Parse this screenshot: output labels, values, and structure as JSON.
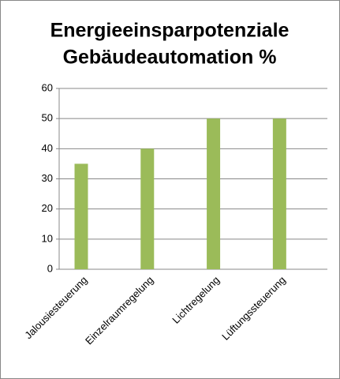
{
  "chart_data": {
    "type": "bar",
    "title": [
      "Energieeinsparpotenziale",
      "Gebäudeautomation %"
    ],
    "categories": [
      "Jalousiesteuerung",
      "Einzelraumregelung",
      "Lichtregelung",
      "Lüftungssteuerung"
    ],
    "values": [
      35,
      40,
      50,
      50
    ],
    "color": "#9bbb59",
    "ylim": [
      0,
      60
    ],
    "yticks": [
      0,
      10,
      20,
      30,
      40,
      50,
      60
    ],
    "grid": true
  }
}
